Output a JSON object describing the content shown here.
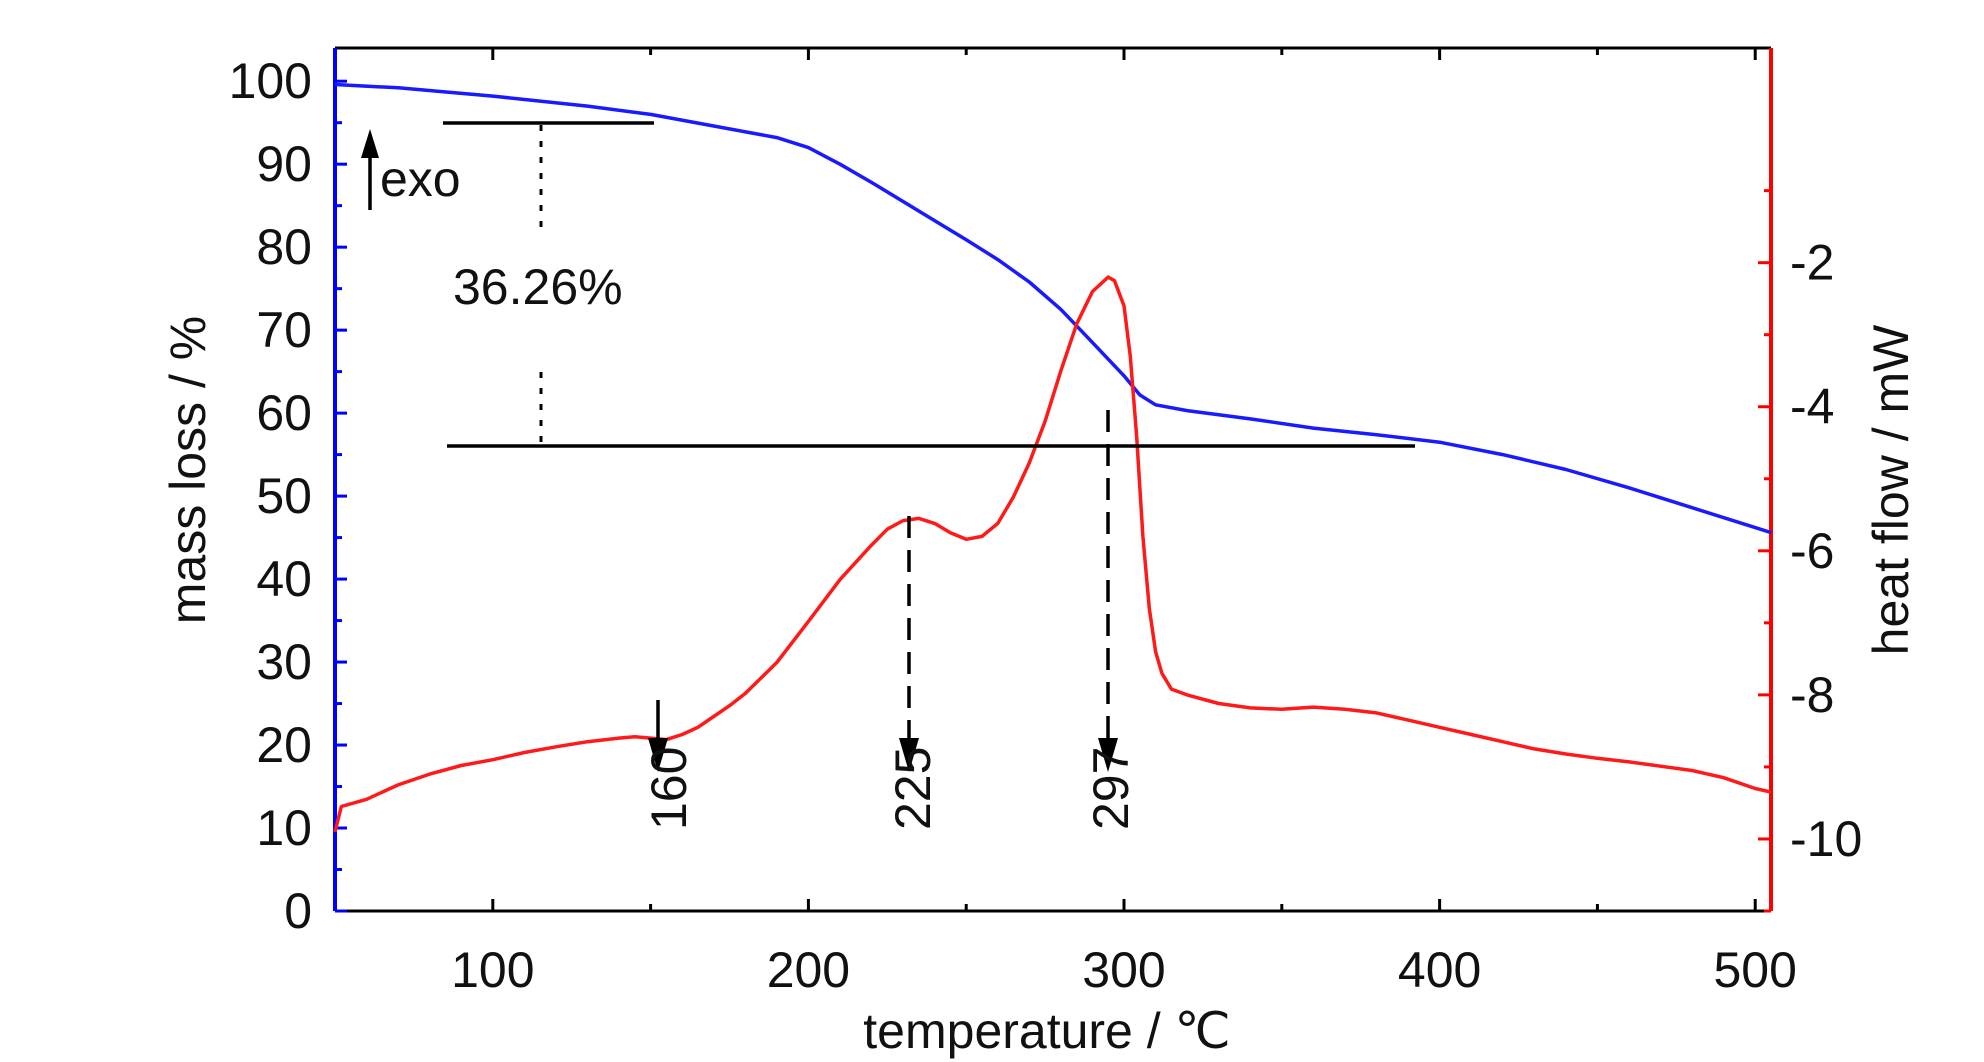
{
  "chart_data": {
    "type": "line",
    "xlabel": "temperature  /  ℃",
    "ylabel_left": "mass loss / %",
    "ylabel_right": "heat flow / mW",
    "xlim": [
      50,
      505
    ],
    "ylim_left": [
      0,
      104
    ],
    "ylim_right": [
      -11.0,
      0.98
    ],
    "x_ticks": [
      100,
      200,
      300,
      400,
      500
    ],
    "x_minor_ticks": [
      150,
      250,
      350,
      450
    ],
    "y_left_ticks": [
      0,
      10,
      20,
      30,
      40,
      50,
      60,
      70,
      80,
      90,
      100
    ],
    "y_right_ticks": [
      -2,
      -4,
      -6,
      -8,
      -10
    ],
    "colors": {
      "mass_axis": "#0000ff",
      "heat_axis": "#ff0000",
      "mass_line": "#1a1aff",
      "heat_line": "#ff1a1a",
      "annotation": "#000000"
    },
    "series": [
      {
        "axis": "left",
        "x": [
          50,
          70,
          100,
          130,
          150,
          170,
          190,
          200,
          210,
          220,
          230,
          240,
          250,
          260,
          270,
          280,
          290,
          300,
          305,
          310,
          320,
          340,
          360,
          380,
          400,
          420,
          440,
          460,
          480,
          500,
          505
        ],
        "values": [
          99.6,
          99.2,
          98.2,
          97.0,
          96.0,
          94.6,
          93.2,
          92.0,
          90.0,
          87.8,
          85.5,
          83.2,
          80.9,
          78.5,
          75.8,
          72.5,
          68.5,
          64.5,
          62.2,
          61.0,
          60.3,
          59.3,
          58.2,
          57.4,
          56.5,
          55.0,
          53.2,
          51.0,
          48.6,
          46.2,
          45.6
        ]
      },
      {
        "axis": "right",
        "x": [
          50,
          52,
          60,
          70,
          80,
          90,
          100,
          110,
          120,
          130,
          140,
          145,
          150,
          155,
          160,
          165,
          170,
          175,
          180,
          190,
          200,
          210,
          220,
          225,
          230,
          235,
          240,
          245,
          250,
          255,
          260,
          265,
          270,
          275,
          280,
          285,
          290,
          295,
          297,
          300,
          302,
          304,
          306,
          308,
          310,
          312,
          315,
          320,
          330,
          340,
          350,
          360,
          370,
          380,
          390,
          400,
          410,
          420,
          430,
          440,
          450,
          460,
          470,
          480,
          490,
          500,
          505
        ],
        "values": [
          -9.9,
          -9.55,
          -9.45,
          -9.25,
          -9.1,
          -8.98,
          -8.9,
          -8.8,
          -8.72,
          -8.65,
          -8.6,
          -8.58,
          -8.6,
          -8.62,
          -8.55,
          -8.45,
          -8.3,
          -8.15,
          -7.98,
          -7.55,
          -6.98,
          -6.4,
          -5.92,
          -5.7,
          -5.58,
          -5.55,
          -5.62,
          -5.75,
          -5.84,
          -5.8,
          -5.62,
          -5.25,
          -4.78,
          -4.2,
          -3.5,
          -2.85,
          -2.4,
          -2.2,
          -2.25,
          -2.6,
          -3.3,
          -4.4,
          -5.8,
          -6.8,
          -7.4,
          -7.7,
          -7.92,
          -8.0,
          -8.12,
          -8.18,
          -8.2,
          -8.17,
          -8.2,
          -8.25,
          -8.35,
          -8.45,
          -8.55,
          -8.65,
          -8.75,
          -8.82,
          -8.88,
          -8.93,
          -8.99,
          -9.05,
          -9.15,
          -9.3,
          -9.35
        ]
      }
    ],
    "annotations": {
      "exo": "exo",
      "mass_loss_pct": "36.26%",
      "peak_160": "160",
      "peak_225": "225",
      "peak_297": "297"
    }
  }
}
